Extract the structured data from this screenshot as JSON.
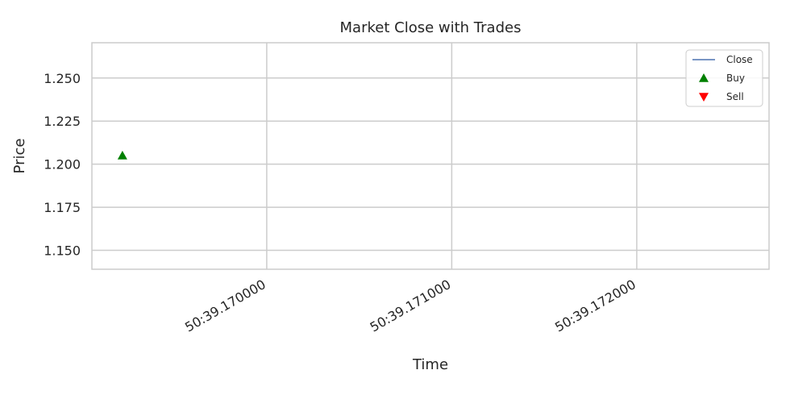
{
  "chart_data": {
    "type": "scatter",
    "title": "Market Close with Trades",
    "xlabel": "Time",
    "ylabel": "Price",
    "x_ticks": [
      {
        "value": 0.17,
        "label": "50:39.170000"
      },
      {
        "value": 0.171,
        "label": "50:39.171000"
      },
      {
        "value": 0.172,
        "label": "50:39.172000"
      }
    ],
    "xlim": [
      0.169055,
      0.172715
    ],
    "y_ticks": [
      1.15,
      1.175,
      1.2,
      1.225,
      1.25
    ],
    "ylim": [
      1.139,
      1.2705
    ],
    "grid": true,
    "legend_position": "top-right",
    "series": [
      {
        "name": "Close",
        "kind": "line",
        "color": "#4c72b0",
        "points": []
      },
      {
        "name": "Buy",
        "kind": "marker",
        "marker": "triangle-up",
        "color": "#008000",
        "points": [
          {
            "x": 0.16922,
            "y": 1.205
          }
        ]
      },
      {
        "name": "Sell",
        "kind": "marker",
        "marker": "triangle-down",
        "color": "#ff0000",
        "points": []
      }
    ]
  }
}
